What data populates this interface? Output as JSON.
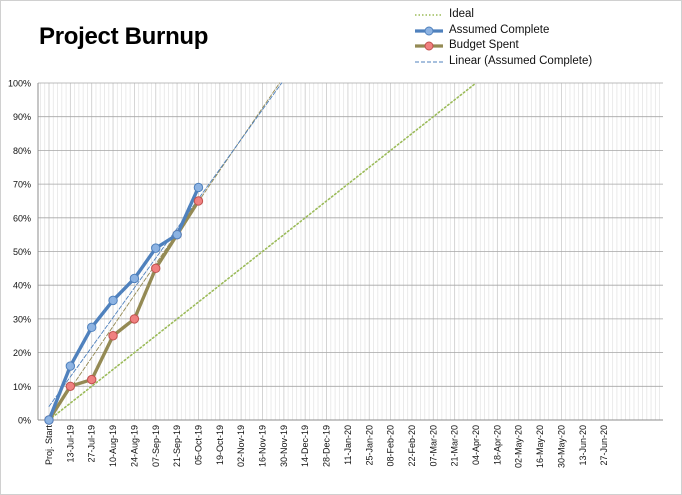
{
  "chart_data": {
    "type": "line",
    "title": "Project Burnup",
    "categories": [
      "Proj. Start",
      "13-Jul-19",
      "27-Jul-19",
      "10-Aug-19",
      "24-Aug-19",
      "07-Sep-19",
      "21-Sep-19",
      "05-Oct-19",
      "19-Oct-19",
      "02-Nov-19",
      "16-Nov-19",
      "30-Nov-19",
      "14-Dec-19",
      "28-Dec-19",
      "11-Jan-20",
      "25-Jan-20",
      "08-Feb-20",
      "22-Feb-20",
      "07-Mar-20",
      "21-Mar-20",
      "04-Apr-20",
      "18-Apr-20",
      "02-May-20",
      "16-May-20",
      "30-May-20",
      "13-Jun-20",
      "27-Jun-20"
    ],
    "y_ticks": [
      "0%",
      "10%",
      "20%",
      "30%",
      "40%",
      "50%",
      "60%",
      "70%",
      "80%",
      "90%",
      "100%"
    ],
    "ylim": [
      0,
      1
    ],
    "grid": true,
    "legend_position": "top-right",
    "series": [
      {
        "name": "Ideal",
        "style": "dotted",
        "color": "#9bbb59",
        "x": [
          0,
          20
        ],
        "values": [
          0,
          1.0
        ]
      },
      {
        "name": "Assumed Complete",
        "style": "solid-markers",
        "color": "#4f81bd",
        "marker_fill": "#8db3e2",
        "x": [
          0,
          1,
          2,
          3,
          4,
          5,
          6,
          7
        ],
        "values": [
          0,
          0.16,
          0.275,
          0.355,
          0.42,
          0.51,
          0.55,
          0.69
        ]
      },
      {
        "name": "Budget Spent",
        "style": "solid-markers",
        "color": "#948a54",
        "marker_fill": "#f08080",
        "x": [
          0,
          1,
          2,
          3,
          4,
          5,
          6,
          7
        ],
        "values": [
          0,
          0.1,
          0.12,
          0.25,
          0.3,
          0.45,
          0.55,
          0.65
        ]
      },
      {
        "name": "Linear (Assumed Complete)",
        "style": "dashed",
        "color": "#4f81bd",
        "x": [
          0,
          10.9
        ],
        "values": [
          0.04,
          1.0
        ]
      }
    ],
    "extra_lines": [
      {
        "style": "dashed",
        "color": "#948a54",
        "x": [
          0,
          10.8
        ],
        "values": [
          0,
          1.0
        ]
      }
    ]
  }
}
